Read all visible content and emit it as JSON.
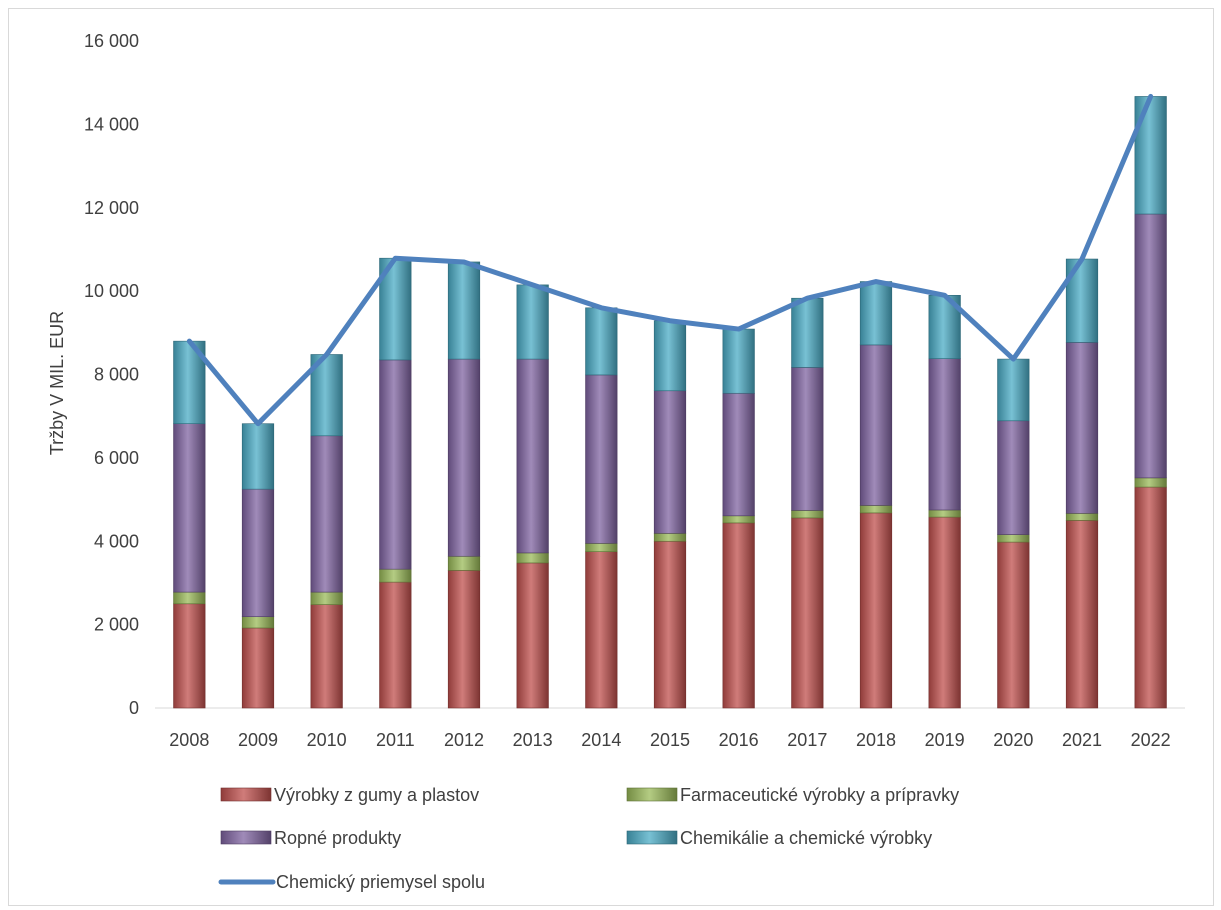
{
  "chart_data": {
    "type": "bar",
    "stacked": true,
    "ylabel": "Tržby V MIL. EUR",
    "ylim": [
      0,
      16000
    ],
    "yticks": [
      0,
      2000,
      4000,
      6000,
      8000,
      10000,
      12000,
      14000,
      16000
    ],
    "ytick_labels": [
      "0",
      "2 000",
      "4 000",
      "6 000",
      "8 000",
      "10 000",
      "12 000",
      "14 000",
      "16 000"
    ],
    "grid": false,
    "legend_position": "bottom",
    "categories": [
      "2008",
      "2009",
      "2010",
      "2011",
      "2012",
      "2013",
      "2014",
      "2015",
      "2016",
      "2017",
      "2018",
      "2019",
      "2020",
      "2021",
      "2022"
    ],
    "series": [
      {
        "name": "Výrobky z gumy a plastov",
        "color": "#c0504d",
        "values": [
          2500,
          1920,
          2480,
          3020,
          3300,
          3480,
          3750,
          4000,
          4440,
          4560,
          4680,
          4580,
          3980,
          4500,
          5300
        ]
      },
      {
        "name": "Farmaceutické výrobky a prípravky",
        "color": "#9bbb59",
        "values": [
          280,
          270,
          300,
          310,
          340,
          240,
          200,
          190,
          170,
          180,
          180,
          170,
          180,
          170,
          220
        ]
      },
      {
        "name": "Ropné produkty",
        "color": "#8064a2",
        "values": [
          4040,
          3060,
          3750,
          5020,
          4730,
          4650,
          4040,
          3420,
          2940,
          3430,
          3850,
          3630,
          2730,
          4100,
          6330
        ]
      },
      {
        "name": "Chemikálie a chemické výrobky",
        "color": "#4bacc6",
        "values": [
          1980,
          1570,
          1950,
          2440,
          2330,
          1780,
          1610,
          1680,
          1540,
          1660,
          1520,
          1520,
          1480,
          2000,
          2820
        ]
      }
    ],
    "line_series": {
      "name": "Chemický priemysel spolu",
      "color": "#4f81bd",
      "values": [
        8800,
        6820,
        8480,
        10790,
        10700,
        10150,
        9600,
        9290,
        9090,
        9830,
        10230,
        9900,
        8370,
        10770,
        14670
      ]
    }
  }
}
